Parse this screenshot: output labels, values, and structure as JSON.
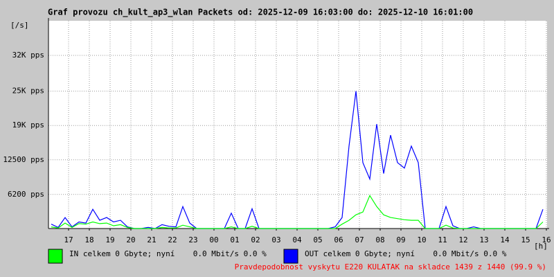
{
  "chart_data": {
    "type": "line",
    "title": "Graf provozu ch_kult_ap3_wlan Packets od: 2025-12-09 16:03:00 do: 2025-12-10 16:01:00",
    "y_label": "[/s]",
    "x_label": "[h]",
    "x": [
      "16:10",
      "16:30",
      "16:50",
      "17:10",
      "17:30",
      "17:50",
      "18:10",
      "18:30",
      "18:50",
      "19:10",
      "19:30",
      "19:50",
      "20:10",
      "20:30",
      "20:50",
      "21:10",
      "21:30",
      "21:50",
      "22:10",
      "22:30",
      "22:50",
      "23:10",
      "23:30",
      "23:50",
      "00:10",
      "00:30",
      "00:50",
      "01:10",
      "01:30",
      "01:50",
      "02:10",
      "02:30",
      "02:50",
      "03:10",
      "03:30",
      "03:50",
      "04:10",
      "04:30",
      "04:50",
      "05:10",
      "05:30",
      "05:50",
      "06:10",
      "06:30",
      "06:50",
      "07:10",
      "07:30",
      "07:50",
      "08:10",
      "08:30",
      "08:50",
      "09:10",
      "09:30",
      "09:50",
      "10:10",
      "10:30",
      "10:50",
      "11:10",
      "11:30",
      "11:50",
      "12:10",
      "12:30",
      "12:50",
      "13:10",
      "13:30",
      "13:50",
      "14:10",
      "14:30",
      "14:50",
      "15:10",
      "15:30",
      "15:50"
    ],
    "series": [
      {
        "name": "OUT celkem 0 Gbyte; nyní    0.0 Mbit/s 0.0 %",
        "color": "#0000ff",
        "values": [
          800,
          200,
          2000,
          300,
          1200,
          1000,
          3500,
          1500,
          2000,
          1200,
          1500,
          300,
          0,
          0,
          200,
          0,
          700,
          400,
          300,
          4000,
          1000,
          0,
          0,
          0,
          0,
          0,
          2800,
          0,
          0,
          3600,
          0,
          0,
          0,
          0,
          0,
          0,
          0,
          0,
          0,
          0,
          0,
          300,
          2000,
          15000,
          25000,
          12000,
          9000,
          19000,
          10000,
          17000,
          12000,
          11000,
          15000,
          12000,
          0,
          0,
          0,
          4000,
          500,
          0,
          0,
          300,
          0,
          0,
          0,
          0,
          0,
          0,
          0,
          0,
          0,
          3500
        ]
      },
      {
        "name": "IN celkem 0 Gbyte; nyní    0.0 Mbit/s 0.0 %",
        "color": "#00ff00",
        "values": [
          300,
          100,
          1000,
          200,
          900,
          800,
          1200,
          900,
          1000,
          500,
          700,
          200,
          0,
          0,
          0,
          0,
          200,
          100,
          100,
          600,
          300,
          0,
          0,
          0,
          0,
          0,
          300,
          0,
          0,
          400,
          0,
          0,
          0,
          0,
          0,
          0,
          0,
          0,
          0,
          0,
          0,
          0,
          800,
          1500,
          2500,
          3000,
          6000,
          4000,
          2500,
          2000,
          1800,
          1600,
          1500,
          1500,
          0,
          0,
          0,
          600,
          100,
          0,
          0,
          0,
          0,
          0,
          0,
          0,
          0,
          0,
          0,
          0,
          0,
          1200
        ]
      }
    ],
    "xticks": [
      "17",
      "18",
      "19",
      "20",
      "21",
      "22",
      "23",
      "00",
      "01",
      "02",
      "03",
      "04",
      "05",
      "06",
      "07",
      "08",
      "09",
      "10",
      "11",
      "12",
      "13",
      "14",
      "15",
      "16"
    ],
    "ylim": [
      0,
      37800
    ],
    "yticks": [
      {
        "value": 6200,
        "label": "6200 pps"
      },
      {
        "value": 12500,
        "label": "12500 pps"
      },
      {
        "value": 18750,
        "label": "19K pps"
      },
      {
        "value": 25000,
        "label": "25K pps"
      },
      {
        "value": 31500,
        "label": "32K pps"
      }
    ],
    "grid": true,
    "footnote": "Pravdepodobnost vyskytu E220 KULATAK na skladce 1439 z 1440 (99.9 %)"
  }
}
